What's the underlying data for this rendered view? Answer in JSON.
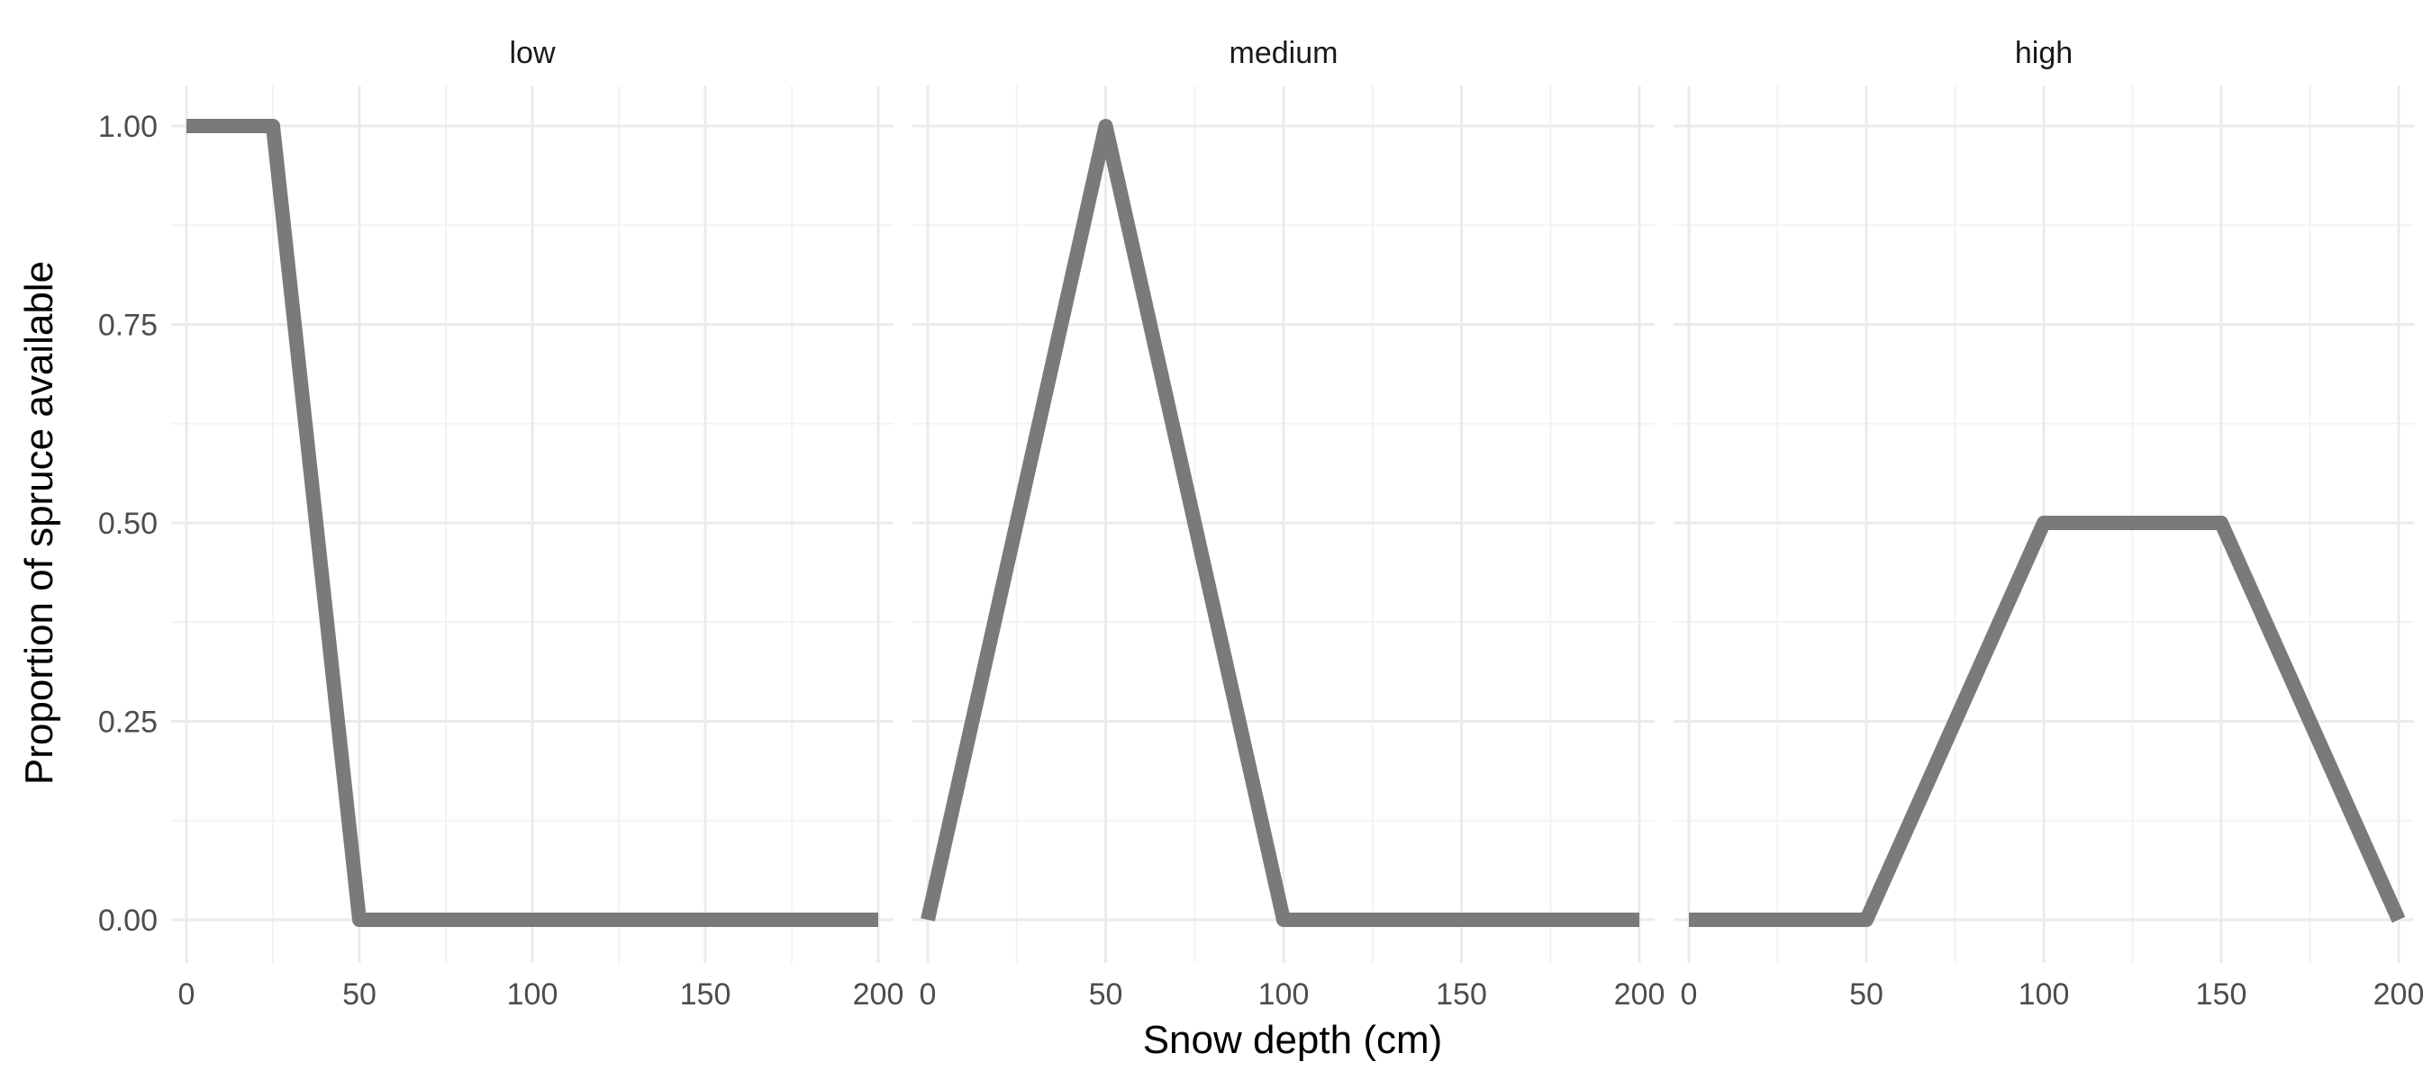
{
  "chart_data": {
    "type": "line",
    "xlabel": "Snow depth (cm)",
    "ylabel": "Proportion of spruce available",
    "xlim": [
      0,
      200
    ],
    "ylim": [
      0,
      1
    ],
    "x_ticks": [
      0,
      50,
      100,
      150,
      200
    ],
    "y_ticks": [
      0.0,
      0.25,
      0.5,
      0.75,
      1.0
    ],
    "x_tick_labels": [
      "0",
      "50",
      "100",
      "150",
      "200"
    ],
    "y_tick_labels": [
      "0.00",
      "0.25",
      "0.50",
      "0.75",
      "1.00"
    ],
    "grid": true,
    "line_color": "#7a7a7a",
    "panels": [
      {
        "label": "low",
        "x": [
          0,
          25,
          50,
          200
        ],
        "y": [
          1.0,
          1.0,
          0.0,
          0.0
        ]
      },
      {
        "label": "medium",
        "x": [
          0,
          50,
          100,
          200
        ],
        "y": [
          0.0,
          1.0,
          0.0,
          0.0
        ]
      },
      {
        "label": "high",
        "x": [
          0,
          50,
          100,
          150,
          200
        ],
        "y": [
          0.0,
          0.0,
          0.5,
          0.5,
          0.0
        ]
      }
    ]
  }
}
